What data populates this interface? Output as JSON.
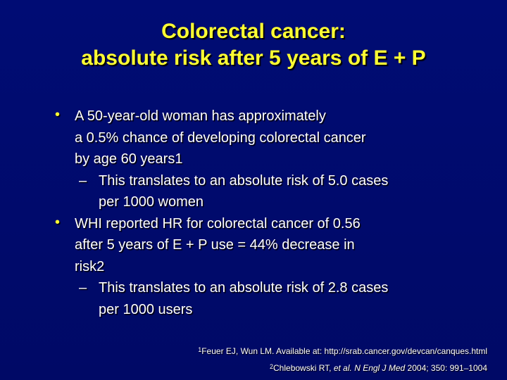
{
  "title": {
    "line1": "Colorectal cancer:",
    "line2": "absolute risk after 5 years of E + P"
  },
  "bullets": [
    {
      "lines": [
        "A 50-year-old woman has approximately",
        "a 0.5% chance of developing colorectal cancer",
        "by age 60 years1"
      ],
      "sub": {
        "lines": [
          "This translates to an absolute risk of 5.0 cases",
          "per 1000 women"
        ]
      }
    },
    {
      "lines": [
        "WHI reported HR for colorectal cancer of 0.56",
        "after 5 years of E + P use = 44% decrease in",
        "risk2"
      ],
      "sub": {
        "lines": [
          "This translates to an absolute risk of 2.8 cases",
          "per 1000 users"
        ]
      }
    }
  ],
  "bullet_glyph": "•",
  "dash_glyph": "–",
  "references": {
    "ref1": {
      "num": "1",
      "text": "Feuer EJ, Wun LM. Available at: http://srab.cancer.gov/devcan/canques.html"
    },
    "ref2": {
      "num": "2",
      "pre": "Chlebowski RT, ",
      "etal": "et al.",
      "space": " ",
      "journal": "N Engl J Med",
      "post": " 2004; 350: 991–1004"
    }
  },
  "colors": {
    "background": "#000a6e",
    "title": "#ffff33",
    "text": "#ffffff",
    "bullet": "#ffff33"
  }
}
